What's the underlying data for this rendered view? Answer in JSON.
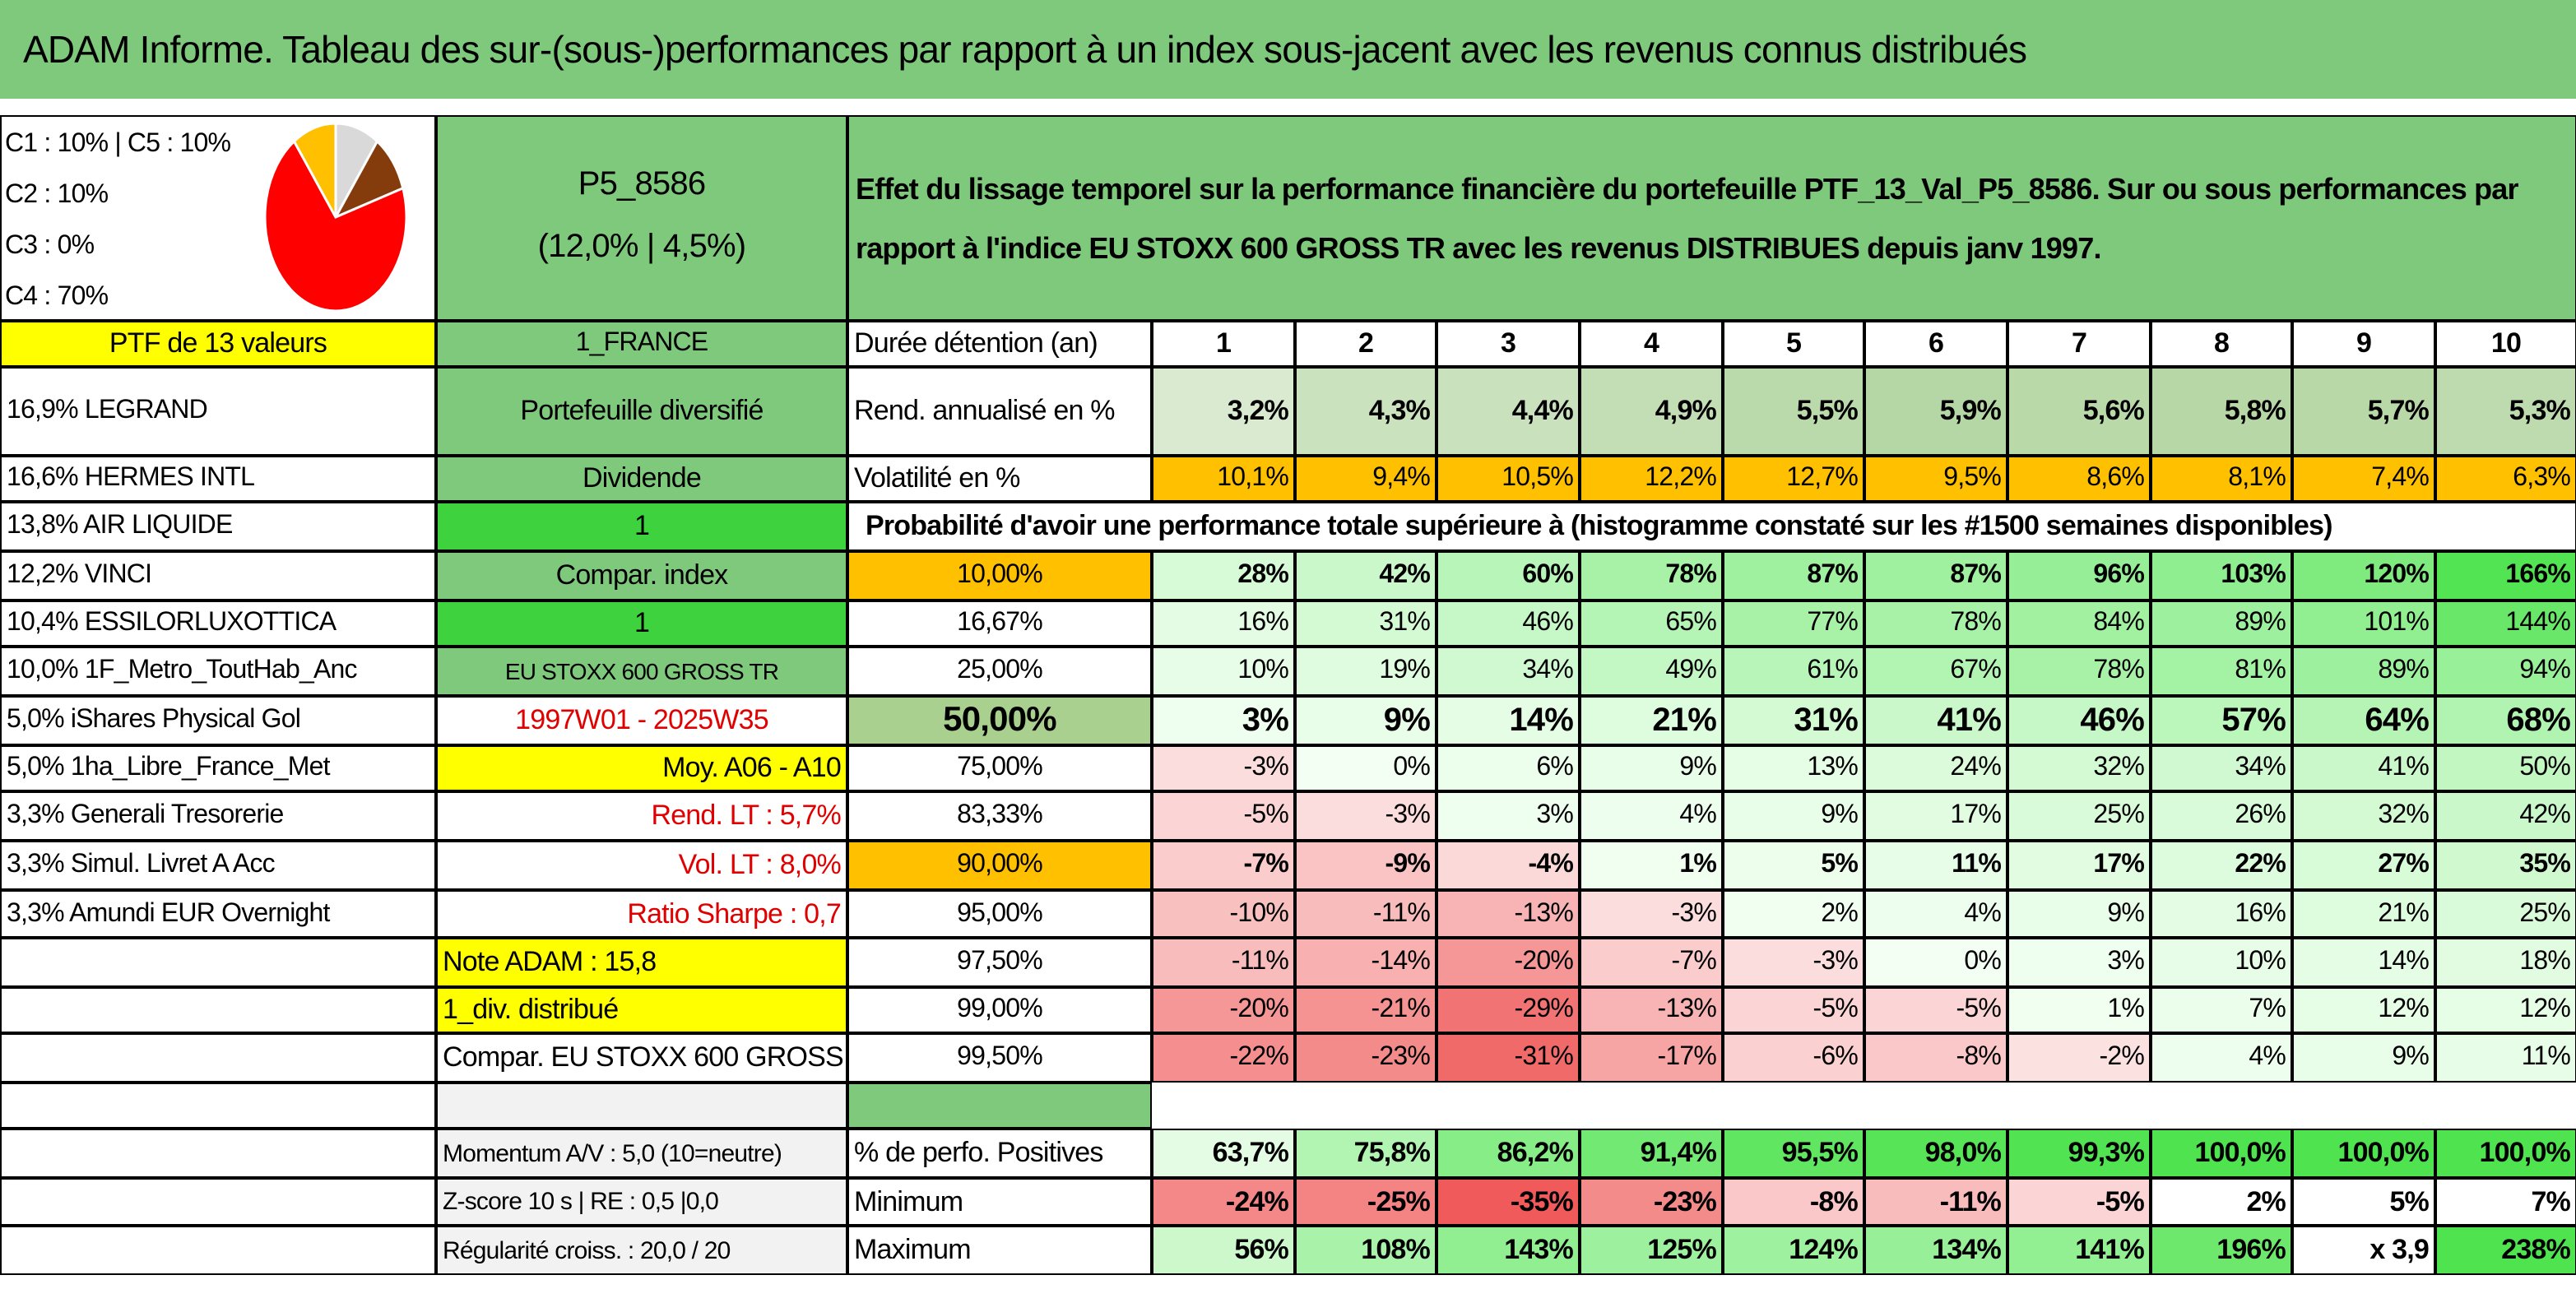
{
  "title": "ADAM Informe. Tableau des sur-(sous-)performances par rapport à un index sous-jacent avec les revenus connus distribués",
  "header": {
    "pie_labels": [
      "C1 : 10% | C5 : 10%",
      "C2 : 10%",
      "C3 : 0%",
      "C4 : 70%"
    ],
    "pie": {
      "values": [
        10,
        10,
        70,
        10
      ],
      "colors": [
        "#d9d9d9",
        "#843c0c",
        "#ff0000",
        "#ffc000"
      ]
    },
    "portfolio": "P5_8586",
    "portfolio_stats": "(12,0% | 4,5%)",
    "description": "Effet du lissage temporel sur la performance financière du portefeuille PTF_13_Val_P5_8586. Sur ou sous performances par rapport à l'indice EU STOXX 600 GROSS TR avec les revenus DISTRIBUES depuis janv 1997."
  },
  "table": {
    "rows": [
      [
        "PTF de 13 valeurs",
        "1_FRANCE",
        "Durée détention (an)",
        1,
        2,
        3,
        4,
        5,
        6,
        7,
        8,
        9,
        10
      ],
      [
        "16,9% LEGRAND",
        "Portefeuille diversifié",
        "Rend. annualisé en %",
        "3,2%",
        "4,3%",
        "4,4%",
        "4,9%",
        "5,5%",
        "5,9%",
        "5,6%",
        "5,8%",
        "5,7%",
        "5,3%"
      ],
      [
        "16,6% HERMES INTL",
        "Dividende",
        "Volatilité en %",
        "10,1%",
        "9,4%",
        "10,5%",
        "12,2%",
        "12,7%",
        "9,5%",
        "8,6%",
        "8,1%",
        "7,4%",
        "6,3%"
      ],
      [
        "13,8% AIR LIQUIDE",
        "1",
        "Probabilité d'avoir une performance totale supérieure à (histogramme constaté sur les #1500 semaines disponibles)"
      ],
      [
        "12,2% VINCI",
        "Compar. index",
        "10,00%",
        "28%",
        "42%",
        "60%",
        "78%",
        "87%",
        "87%",
        "96%",
        "103%",
        "120%",
        "166%"
      ],
      [
        "10,4% ESSILORLUXOTTICA",
        "1",
        "16,67%",
        "16%",
        "31%",
        "46%",
        "65%",
        "77%",
        "78%",
        "84%",
        "89%",
        "101%",
        "144%"
      ],
      [
        "10,0% 1F_Metro_ToutHab_Anc",
        "EU STOXX 600 GROSS TR",
        "25,00%",
        "10%",
        "19%",
        "34%",
        "49%",
        "61%",
        "67%",
        "78%",
        "81%",
        "89%",
        "94%"
      ],
      [
        "5,0% iShares Physical Gol",
        "1997W01 - 2025W35",
        "50,00%",
        "3%",
        "9%",
        "14%",
        "21%",
        "31%",
        "41%",
        "46%",
        "57%",
        "64%",
        "68%"
      ],
      [
        "5,0% 1ha_Libre_France_Met",
        "Moy. A06 - A10",
        "75,00%",
        "-3%",
        "0%",
        "6%",
        "9%",
        "13%",
        "24%",
        "32%",
        "34%",
        "41%",
        "50%"
      ],
      [
        "3,3% Generali Tresorerie",
        "Rend. LT : 5,7%",
        "83,33%",
        "-5%",
        "-3%",
        "3%",
        "4%",
        "9%",
        "17%",
        "25%",
        "26%",
        "32%",
        "42%"
      ],
      [
        "3,3% Simul. Livret A Acc",
        "Vol. LT : 8,0%",
        "90,00%",
        "-7%",
        "-9%",
        "-4%",
        "1%",
        "5%",
        "11%",
        "17%",
        "22%",
        "27%",
        "35%"
      ],
      [
        "3,3% Amundi EUR Overnight",
        "Ratio Sharpe : 0,7",
        "95,00%",
        "-10%",
        "-11%",
        "-13%",
        "-3%",
        "2%",
        "4%",
        "9%",
        "16%",
        "21%",
        "25%"
      ],
      [
        null,
        "Note ADAM : 15,8",
        "97,50%",
        "-11%",
        "-14%",
        "-20%",
        "-7%",
        "-3%",
        "0%",
        "3%",
        "10%",
        "14%",
        "18%"
      ],
      [
        null,
        "1_div. distribué",
        "99,00%",
        "-20%",
        "-21%",
        "-29%",
        "-13%",
        "-5%",
        "-5%",
        "1%",
        "7%",
        "12%",
        "12%"
      ],
      [
        null,
        "Compar. EU STOXX 600 GROSS TR",
        "99,50%",
        "-22%",
        "-23%",
        "-31%",
        "-17%",
        "-6%",
        "-8%",
        "-2%",
        "4%",
        "9%",
        "11%"
      ],
      [
        null,
        null,
        null
      ],
      [
        null,
        "Momentum A/V : 5,0 (10=neutre)",
        "% de perfo. Positives",
        "63,7%",
        "75,8%",
        "86,2%",
        "91,4%",
        "95,5%",
        "98,0%",
        "99,3%",
        "100,0%",
        "100,0%",
        "100,0%"
      ],
      [
        null,
        "Z-score 10 s | RE : 0,5 |0,0",
        "Minimum",
        "-24%",
        "-25%",
        "-35%",
        "-23%",
        "-8%",
        "-11%",
        "-5%",
        "2%",
        "5%",
        "7%"
      ],
      [
        null,
        "Régularité croiss. : 20,0 / 20",
        "Maximum",
        "56%",
        "108%",
        "143%",
        "125%",
        "124%",
        "134%",
        "141%",
        "196%",
        "x 3,9",
        "238%"
      ]
    ]
  }
}
